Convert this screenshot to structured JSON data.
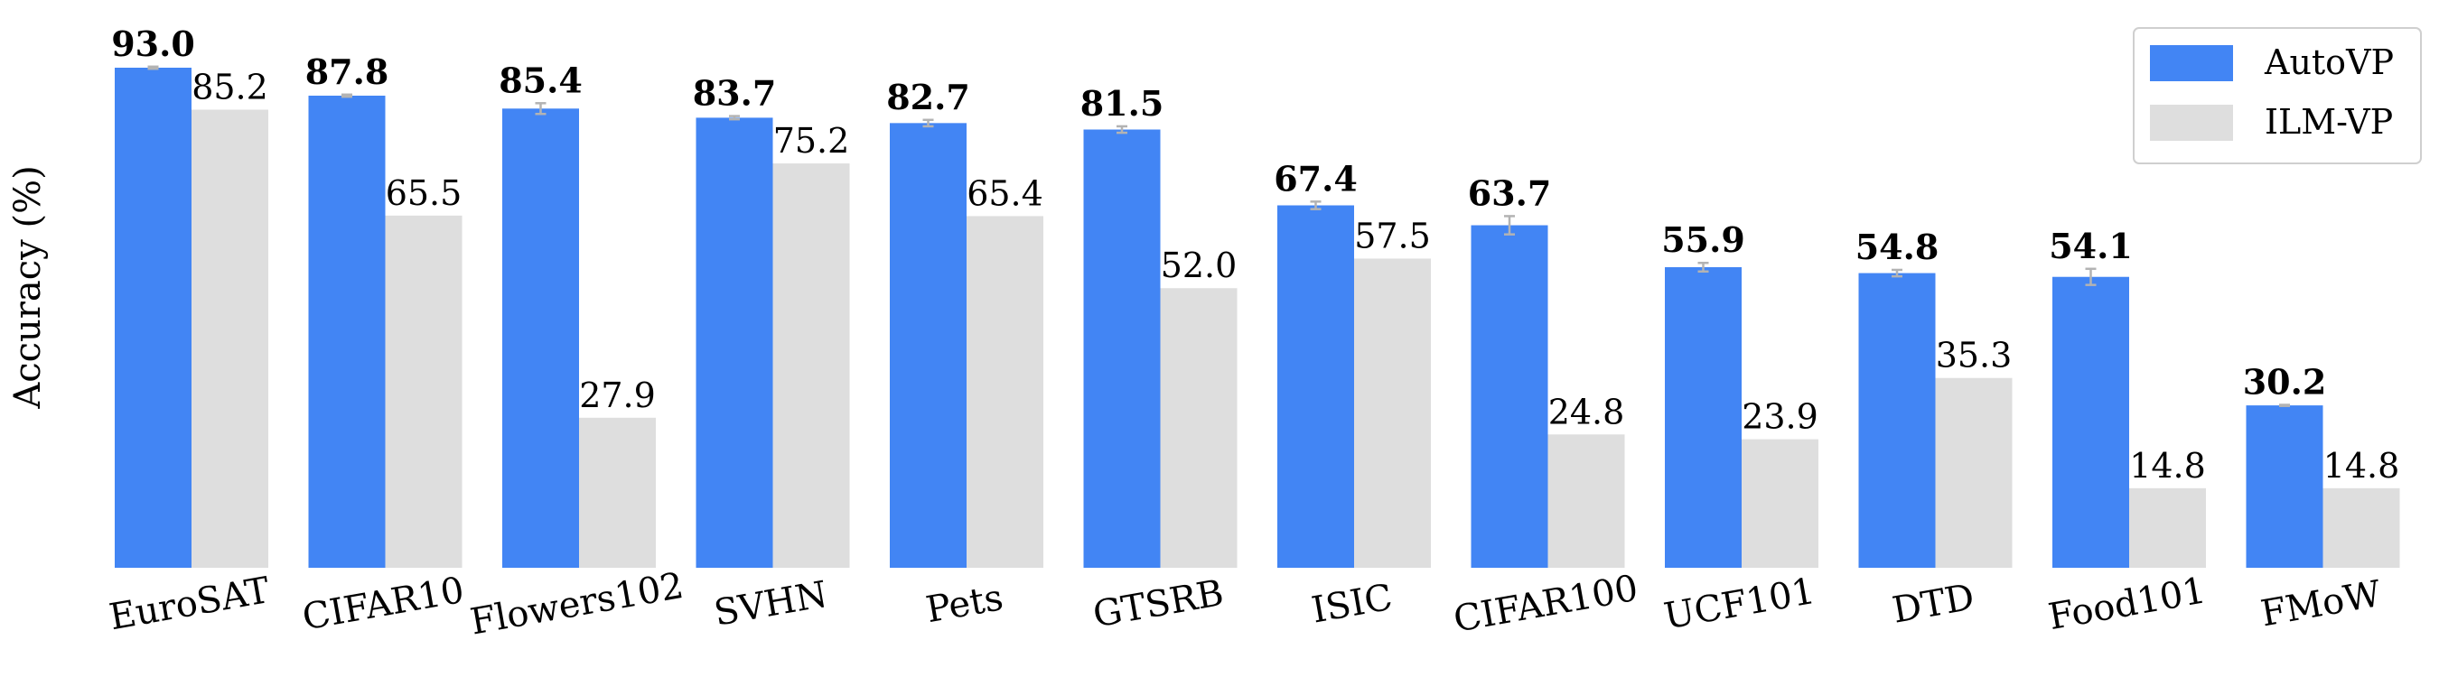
{
  "chart_data": {
    "type": "bar",
    "ylabel": "Accuracy (%)",
    "xlabel": "",
    "ylim": [
      0,
      100
    ],
    "grid": false,
    "legend": {
      "position": "top-right"
    },
    "categories": [
      "EuroSAT",
      "CIFAR10",
      "Flowers102",
      "SVHN",
      "Pets",
      "GTSRB",
      "ISIC",
      "CIFAR100",
      "UCF101",
      "DTD",
      "Food101",
      "FMoW"
    ],
    "series": [
      {
        "name": "AutoVP",
        "color": "#4285f4",
        "values": [
          93.0,
          87.8,
          85.4,
          83.7,
          82.7,
          81.5,
          67.4,
          63.7,
          55.9,
          54.8,
          54.1,
          30.2
        ],
        "labels": [
          "93.0",
          "87.8",
          "85.4",
          "83.7",
          "82.7",
          "81.5",
          "67.4",
          "63.7",
          "55.9",
          "54.8",
          "54.1",
          "30.2"
        ],
        "error": [
          0.2,
          0.2,
          1.0,
          0.3,
          0.6,
          0.6,
          0.7,
          1.7,
          0.8,
          0.6,
          1.5,
          0.1
        ],
        "bold_labels": true
      },
      {
        "name": "ILM-VP",
        "color": "#dedede",
        "values": [
          85.2,
          65.5,
          27.9,
          75.2,
          65.4,
          52.0,
          57.5,
          24.8,
          23.9,
          35.3,
          14.8,
          14.8
        ],
        "labels": [
          "85.2",
          "65.5",
          "27.9",
          "75.2",
          "65.4",
          "52.0",
          "57.5",
          "24.8",
          "23.9",
          "35.3",
          "14.8",
          "14.8"
        ],
        "bold_labels": false
      }
    ]
  }
}
